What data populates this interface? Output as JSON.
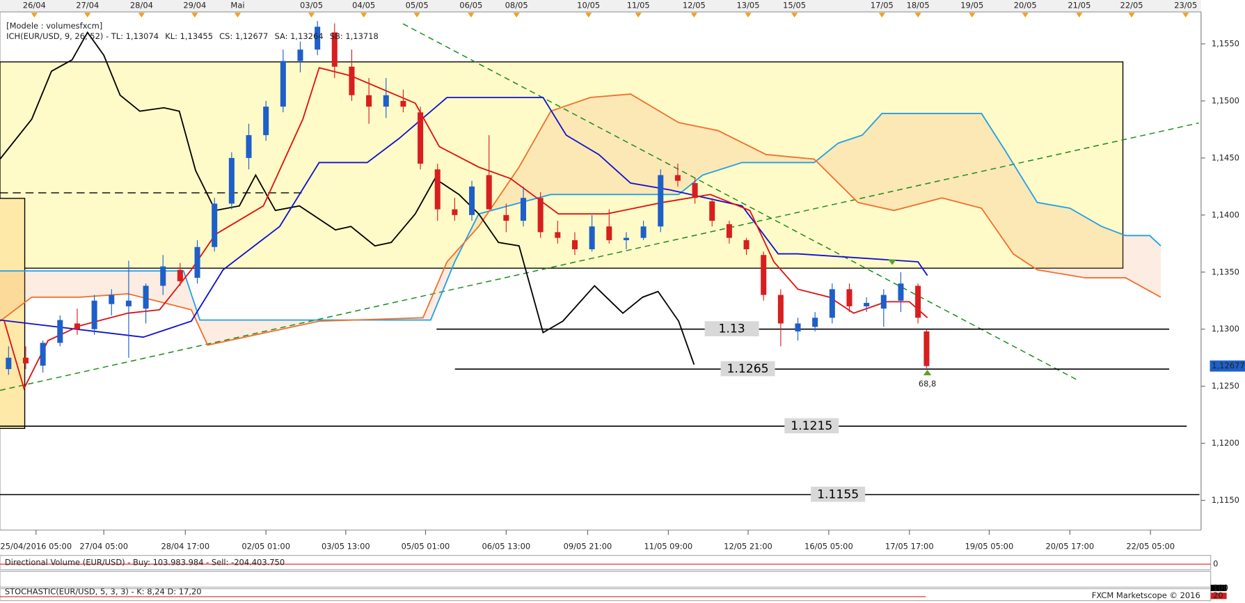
{
  "chart_data": {
    "type": "candlestick",
    "legend_title": "[Modele : volumesfxcm]",
    "legend": [
      {
        "text": "ICH(EUR/USD, 9, 26, 52) -  TL: 1,13074",
        "color": "#e01010"
      },
      {
        "text": "KL: 1,13455",
        "color": "#1010d0"
      },
      {
        "text": "CS: 1,12677",
        "color": "#000000"
      },
      {
        "text": "SA: 1,13264",
        "color": "#f07030"
      },
      {
        "text": "SB: 1,13718",
        "color": "#20a0e8"
      }
    ],
    "xlim": [
      0,
      140
    ],
    "ylim": [
      1.1124,
      1.1578
    ],
    "yticks": [
      {
        "value": 1.115,
        "label": "1,1150"
      },
      {
        "value": 1.12,
        "label": "1,1200"
      },
      {
        "value": 1.125,
        "label": "1,1250"
      },
      {
        "value": 1.13,
        "label": "1,1300"
      },
      {
        "value": 1.135,
        "label": "1,1350"
      },
      {
        "value": 1.14,
        "label": "1,1400"
      },
      {
        "value": 1.145,
        "label": "1,1450"
      },
      {
        "value": 1.15,
        "label": "1,1500"
      },
      {
        "value": 1.155,
        "label": "1,1550"
      }
    ],
    "xticks_top": [
      {
        "value": 4,
        "label": "26/04"
      },
      {
        "value": 10.2,
        "label": "27/04"
      },
      {
        "value": 16.5,
        "label": "28/04"
      },
      {
        "value": 22.7,
        "label": "29/04"
      },
      {
        "value": 27.7,
        "label": "Mai"
      },
      {
        "value": 36.3,
        "label": "03/05"
      },
      {
        "value": 42.4,
        "label": "04/05"
      },
      {
        "value": 48.6,
        "label": "05/05"
      },
      {
        "value": 54.9,
        "label": "06/05"
      },
      {
        "value": 60.2,
        "label": "08/05"
      },
      {
        "value": 68.6,
        "label": "10/05"
      },
      {
        "value": 74.4,
        "label": "11/05"
      },
      {
        "value": 80.9,
        "label": "12/05"
      },
      {
        "value": 87.2,
        "label": "13/05"
      },
      {
        "value": 92.6,
        "label": "15/05"
      },
      {
        "value": 102.8,
        "label": "17/05"
      },
      {
        "value": 107,
        "label": "18/05"
      },
      {
        "value": 113.3,
        "label": "19/05"
      },
      {
        "value": 119.5,
        "label": "20/05"
      },
      {
        "value": 125.8,
        "label": "21/05"
      },
      {
        "value": 131.9,
        "label": "22/05"
      },
      {
        "value": 138.2,
        "label": "23/05"
      }
    ],
    "xticks_bottom": [
      {
        "value": 4.2,
        "label": "25/04/2016 05:00"
      },
      {
        "value": 12.1,
        "label": "27/04 05:00"
      },
      {
        "value": 21.6,
        "label": "28/04 17:00"
      },
      {
        "value": 31,
        "label": "02/05 01:00"
      },
      {
        "value": 40.3,
        "label": "03/05 13:00"
      },
      {
        "value": 49.6,
        "label": "05/05 01:00"
      },
      {
        "value": 59,
        "label": "06/05 13:00"
      },
      {
        "value": 68.5,
        "label": "09/05 21:00"
      },
      {
        "value": 77.9,
        "label": "11/05 09:00"
      },
      {
        "value": 87.2,
        "label": "12/05 21:00"
      },
      {
        "value": 96.6,
        "label": "16/05 05:00"
      },
      {
        "value": 106,
        "label": "17/05 17:00"
      },
      {
        "value": 115.3,
        "label": "19/05 05:00"
      },
      {
        "value": 124.7,
        "label": "20/05 17:00"
      },
      {
        "value": 134.1,
        "label": "22/05 05:00"
      }
    ],
    "candles": {
      "up_color": "#1e5fc8",
      "down_color": "#d81e1e",
      "x": [
        1,
        3,
        5,
        7,
        9,
        11,
        13,
        15,
        17,
        19,
        21,
        23,
        25,
        27,
        29,
        31,
        33,
        35,
        37,
        39,
        41,
        43,
        45,
        47,
        49,
        51,
        53,
        55,
        57,
        59,
        61,
        63,
        65,
        67,
        69,
        71,
        73,
        75,
        77,
        79,
        81,
        83,
        85,
        87,
        89,
        91,
        93,
        95,
        97,
        99,
        101,
        103,
        105,
        107,
        108
      ],
      "open": [
        1.1265,
        1.1275,
        1.1268,
        1.1288,
        1.1305,
        1.13,
        1.1322,
        1.132,
        1.1318,
        1.1338,
        1.1352,
        1.1345,
        1.1372,
        1.141,
        1.145,
        1.147,
        1.1495,
        1.1535,
        1.1545,
        1.156,
        1.153,
        1.1505,
        1.1495,
        1.15,
        1.149,
        1.144,
        1.1405,
        1.14,
        1.1435,
        1.14,
        1.1395,
        1.1415,
        1.1385,
        1.1378,
        1.137,
        1.139,
        1.1378,
        1.138,
        1.139,
        1.1435,
        1.1428,
        1.1412,
        1.1392,
        1.1378,
        1.1365,
        1.133,
        1.1298,
        1.1302,
        1.131,
        1.1335,
        1.132,
        1.1318,
        1.1325,
        1.1338,
        1.1298
      ],
      "high": [
        1.1285,
        1.1285,
        1.129,
        1.1312,
        1.1318,
        1.133,
        1.1335,
        1.136,
        1.134,
        1.1365,
        1.1358,
        1.1378,
        1.1415,
        1.1455,
        1.148,
        1.15,
        1.1545,
        1.1552,
        1.157,
        1.1568,
        1.1545,
        1.152,
        1.152,
        1.151,
        1.1495,
        1.1445,
        1.1415,
        1.143,
        1.147,
        1.141,
        1.1425,
        1.142,
        1.1395,
        1.1385,
        1.14,
        1.1405,
        1.1385,
        1.1395,
        1.144,
        1.1445,
        1.1432,
        1.1415,
        1.1395,
        1.138,
        1.1368,
        1.1335,
        1.131,
        1.1315,
        1.134,
        1.134,
        1.1328,
        1.1335,
        1.135,
        1.134,
        1.13
      ],
      "low": [
        1.126,
        1.1265,
        1.1262,
        1.1285,
        1.1295,
        1.1295,
        1.1312,
        1.1275,
        1.1305,
        1.133,
        1.1338,
        1.134,
        1.1368,
        1.1405,
        1.144,
        1.1465,
        1.149,
        1.1525,
        1.154,
        1.152,
        1.15,
        1.148,
        1.1485,
        1.149,
        1.144,
        1.1395,
        1.1395,
        1.1395,
        1.142,
        1.1385,
        1.139,
        1.138,
        1.1375,
        1.1365,
        1.1368,
        1.1375,
        1.137,
        1.1378,
        1.1385,
        1.1425,
        1.141,
        1.139,
        1.1375,
        1.1365,
        1.1325,
        1.1285,
        1.129,
        1.1298,
        1.1305,
        1.1315,
        1.1315,
        1.1302,
        1.1315,
        1.1305,
        1.1266
      ],
      "close": [
        1.1275,
        1.127,
        1.1288,
        1.1308,
        1.13,
        1.1325,
        1.133,
        1.1325,
        1.1338,
        1.1355,
        1.1342,
        1.1372,
        1.141,
        1.145,
        1.147,
        1.1495,
        1.1535,
        1.1545,
        1.1565,
        1.153,
        1.1505,
        1.1495,
        1.1505,
        1.1495,
        1.1445,
        1.1405,
        1.14,
        1.1425,
        1.1405,
        1.1395,
        1.1415,
        1.1385,
        1.138,
        1.137,
        1.139,
        1.1378,
        1.138,
        1.139,
        1.1435,
        1.143,
        1.1415,
        1.1395,
        1.138,
        1.137,
        1.133,
        1.1305,
        1.1305,
        1.131,
        1.1335,
        1.132,
        1.1323,
        1.133,
        1.134,
        1.131,
        1.12677
      ]
    },
    "series": [
      {
        "name": "SB",
        "color": "#20a0e8",
        "x": [
          0,
          21.4,
          23.3,
          50.2,
          53,
          55.8,
          64.2,
          79.1,
          81.9,
          86.5,
          94.9,
          97.7,
          100.5,
          102.8,
          114.4,
          117.2,
          120.9,
          124.7,
          128.4,
          131.2,
          134,
          135.3
        ],
        "values": [
          1.1351,
          1.1351,
          1.1308,
          1.1308,
          1.1359,
          1.1401,
          1.1418,
          1.1418,
          1.1435,
          1.1446,
          1.1446,
          1.1463,
          1.147,
          1.1489,
          1.1489,
          1.1456,
          1.1411,
          1.1406,
          1.139,
          1.1382,
          1.1382,
          1.1373
        ]
      },
      {
        "name": "SA",
        "color": "#f07030",
        "x": [
          0,
          3.7,
          9.3,
          14.9,
          22.3,
          24.2,
          37.2,
          49.3,
          52.1,
          55.8,
          60.5,
          64.2,
          68.8,
          73.5,
          79.1,
          83.7,
          89.3,
          94.9,
          100,
          104.2,
          109.8,
          114.4,
          118.1,
          120.9,
          126.5,
          131.2,
          135.3
        ],
        "values": [
          1.1307,
          1.1328,
          1.1328,
          1.1331,
          1.1317,
          1.1286,
          1.1307,
          1.131,
          1.1359,
          1.139,
          1.1442,
          1.1491,
          1.1503,
          1.1506,
          1.1481,
          1.1474,
          1.1453,
          1.1449,
          1.1411,
          1.1404,
          1.1415,
          1.1406,
          1.1366,
          1.1352,
          1.1345,
          1.1345,
          1.1328
        ]
      },
      {
        "name": "CS",
        "color": "#000000",
        "x": [
          0,
          3.7,
          6,
          8.4,
          10.2,
          12.1,
          14,
          16.3,
          19.1,
          20.9,
          22.8,
          25.1,
          27.9,
          29.8,
          32.1,
          34.9,
          39.1,
          40.9,
          43.7,
          45.6,
          48.4,
          50.7,
          53.5,
          55.8,
          58.1,
          60.5,
          63.3,
          65.6,
          69.3,
          72.6,
          74.9,
          76.7,
          79.1,
          80.9
        ],
        "values": [
          1.1449,
          1.1484,
          1.1526,
          1.1536,
          1.156,
          1.154,
          1.1505,
          1.1491,
          1.1494,
          1.1491,
          1.1439,
          1.1404,
          1.1408,
          1.1435,
          1.1404,
          1.1408,
          1.1387,
          1.139,
          1.1373,
          1.1376,
          1.1401,
          1.1432,
          1.1418,
          1.1401,
          1.1376,
          1.1373,
          1.1297,
          1.1307,
          1.1338,
          1.1314,
          1.1328,
          1.1333,
          1.1307,
          1.1269
        ]
      },
      {
        "name": "KL",
        "color": "#1010d0",
        "x": [
          0,
          16.7,
          22.3,
          26,
          32.6,
          37.2,
          42.8,
          46.5,
          52.1,
          63.3,
          66,
          69.8,
          73.5,
          78.1,
          86.5,
          90.7,
          93,
          107,
          108.1
        ],
        "values": [
          1.1308,
          1.1293,
          1.1307,
          1.1352,
          1.139,
          1.1446,
          1.1446,
          1.1467,
          1.1503,
          1.1503,
          1.147,
          1.1453,
          1.1428,
          1.1422,
          1.1408,
          1.1366,
          1.1366,
          1.1359,
          1.1347
        ]
      },
      {
        "name": "TL",
        "color": "#e01010",
        "x": [
          0.5,
          2.8,
          5.6,
          9.3,
          14.9,
          18.6,
          22.3,
          25.1,
          30.7,
          35.3,
          37.2,
          40.9,
          48.4,
          51.2,
          55.8,
          59.5,
          65.1,
          70.7,
          77.2,
          82.8,
          87.4,
          90.2,
          93,
          96.7,
          99.5,
          103.3,
          106,
          108.1
        ],
        "values": [
          1.1307,
          1.1248,
          1.129,
          1.1303,
          1.1314,
          1.1317,
          1.1352,
          1.1383,
          1.1408,
          1.1484,
          1.1529,
          1.1522,
          1.1498,
          1.146,
          1.1442,
          1.1432,
          1.1401,
          1.1401,
          1.1411,
          1.1418,
          1.1404,
          1.1359,
          1.1335,
          1.1328,
          1.1314,
          1.1324,
          1.1324,
          1.131
        ]
      }
    ],
    "levels": [
      {
        "value": 1.13,
        "label": "1.13"
      },
      {
        "value": 1.1265,
        "label": "1.1265"
      },
      {
        "value": 1.1215,
        "label": "1.1215"
      },
      {
        "value": 1.1155,
        "label": "1.1155"
      }
    ],
    "last_price": {
      "value": 1.12677,
      "label": "1,12677"
    },
    "annotation": "68,8",
    "panels": [
      {
        "label": "Directional Volume (EUR/USD) - Buy: 103.983.984 - Sell: -204.403.750",
        "ticks": [
          "0"
        ]
      },
      {
        "label": "STOCHASTIC(EUR/USD, 5, 3, 3) - K: 8,24  D: 17,20",
        "ticks": [
          "100",
          "20"
        ]
      }
    ],
    "credit": "FXCM Marketscope © 2016"
  }
}
